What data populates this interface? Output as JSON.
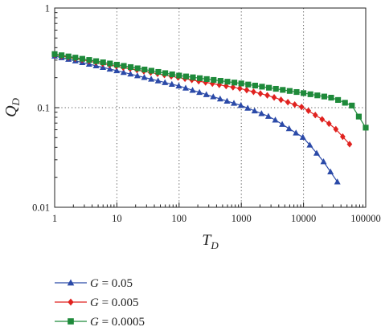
{
  "chart_data": {
    "type": "line",
    "xscale": "log",
    "yscale": "log",
    "xlim": [
      1,
      100000
    ],
    "ylim": [
      0.01,
      1
    ],
    "xticks": [
      1,
      10,
      100,
      1000,
      10000,
      100000
    ],
    "xtick_labels": [
      "1",
      "10",
      "100",
      "1000",
      "10000",
      "100000"
    ],
    "yticks": [
      0.01,
      0.1,
      1
    ],
    "ytick_labels": [
      "0.01",
      "0.1",
      "1"
    ],
    "xlabel": "T",
    "xlabel_sub": "D",
    "ylabel": "Q",
    "ylabel_sub": "D",
    "grid": "dotted, at major decades",
    "legend_position": "below plot, left",
    "series": [
      {
        "name": "G = 0.05",
        "legend_var": "G",
        "legend_value": " = 0.05",
        "marker": "triangle",
        "color": "#2b4aa8",
        "x_start": 1,
        "x_end": 35000,
        "points_per_decade": 9,
        "anchors": [
          [
            1,
            0.33
          ],
          [
            10,
            0.235
          ],
          [
            100,
            0.165
          ],
          [
            1000,
            0.105
          ],
          [
            3000,
            0.08
          ],
          [
            10000,
            0.05
          ],
          [
            20000,
            0.03
          ],
          [
            35000,
            0.018
          ]
        ]
      },
      {
        "name": "G = 0.005",
        "legend_var": "G",
        "legend_value": " = 0.005",
        "marker": "diamond",
        "color": "#e0221f",
        "x_start": 1,
        "x_end": 55000,
        "points_per_decade": 9,
        "anchors": [
          [
            1,
            0.34
          ],
          [
            10,
            0.26
          ],
          [
            100,
            0.2
          ],
          [
            1000,
            0.155
          ],
          [
            3000,
            0.13
          ],
          [
            10000,
            0.1
          ],
          [
            30000,
            0.065
          ],
          [
            55000,
            0.043
          ]
        ]
      },
      {
        "name": "G = 0.0005",
        "legend_var": "G",
        "legend_value": " = 0.0005",
        "marker": "square",
        "color": "#1e8a3a",
        "x_start": 1,
        "x_end": 100000,
        "points_per_decade": 9,
        "anchors": [
          [
            1,
            0.345
          ],
          [
            10,
            0.27
          ],
          [
            100,
            0.21
          ],
          [
            1000,
            0.175
          ],
          [
            10000,
            0.14
          ],
          [
            30000,
            0.125
          ],
          [
            60000,
            0.105
          ],
          [
            100000,
            0.063
          ]
        ]
      }
    ]
  }
}
